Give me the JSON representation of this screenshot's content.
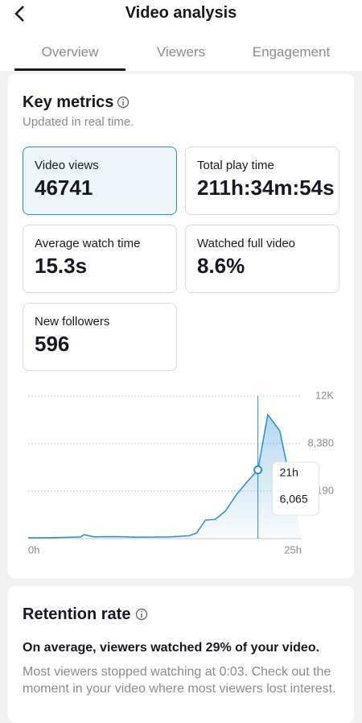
{
  "header": {
    "title": "Video analysis"
  },
  "tabs": [
    {
      "label": "Overview",
      "active": true
    },
    {
      "label": "Viewers",
      "active": false
    },
    {
      "label": "Engagement",
      "active": false
    }
  ],
  "key_metrics": {
    "title": "Key metrics",
    "subtitle": "Updated in real time.",
    "metrics": [
      {
        "label": "Video views",
        "value": "46741",
        "selected": true
      },
      {
        "label": "Total play time",
        "value": "211h:34m:54s",
        "selected": false
      },
      {
        "label": "Average watch time",
        "value": "15.3s",
        "selected": false
      },
      {
        "label": "Watched full video",
        "value": "8.6%",
        "selected": false
      },
      {
        "label": "New followers",
        "value": "596",
        "selected": false
      }
    ]
  },
  "chart_data": {
    "type": "area",
    "color": "#2a8bd0",
    "x": [
      0,
      2,
      4.8,
      5.1,
      6,
      8,
      10,
      13,
      14.7,
      15.4,
      16.2,
      17.1,
      18,
      19,
      20,
      21,
      21.9,
      23,
      24
    ],
    "values": [
      70,
      80,
      140,
      350,
      160,
      180,
      120,
      150,
      260,
      500,
      1630,
      1700,
      2400,
      3830,
      5000,
      6065,
      10940,
      9500,
      4900
    ],
    "xlim": [
      0,
      25
    ],
    "ylim": [
      0,
      12570
    ],
    "xticks": [
      {
        "value": 0,
        "label": "0h"
      },
      {
        "value": 25,
        "label": "25h"
      }
    ],
    "yticks": [
      {
        "value": 4190,
        "label": "4,190"
      },
      {
        "value": 8380,
        "label": "8,380"
      },
      {
        "value": 12570,
        "label": "12K"
      }
    ],
    "grid": true,
    "tooltip": {
      "x": 21,
      "x_label": "21h",
      "value": 6065,
      "value_label": "6,065"
    }
  },
  "retention": {
    "title": "Retention rate",
    "summary": "On average, viewers watched 29% of your video.",
    "detail": "Most viewers stopped watching at 0:03. Check out the moment in your video where most viewers lost interest."
  }
}
